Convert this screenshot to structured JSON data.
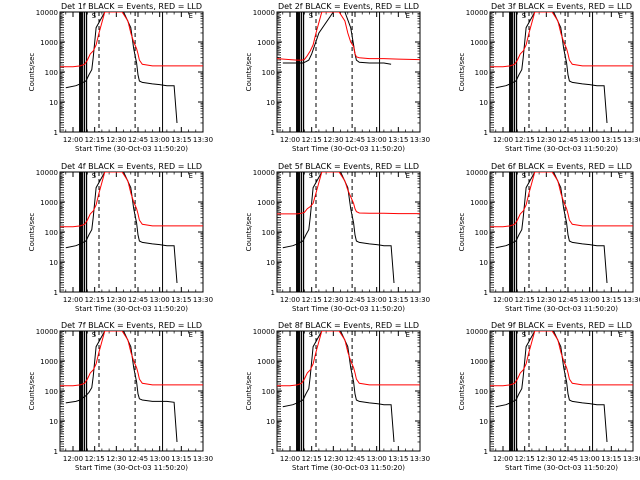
{
  "common": {
    "ylabel": "Counts/sec",
    "xlabel": "Start Time (30-Oct-03 11:50:20)",
    "xticks": [
      "12:00",
      "12:15",
      "12:30",
      "12:45",
      "13:00",
      "13:15",
      "13:30"
    ],
    "yticks": [
      "1",
      "10",
      "100",
      "1000",
      "10000"
    ],
    "ylim": [
      1,
      10000
    ],
    "xlim_minutes_after_12_00": [
      -9,
      90
    ],
    "yscale": "log",
    "colors": {
      "events": "#000000",
      "lld": "#ff0000"
    },
    "marker": "S",
    "end_marker": "E"
  },
  "chart_data": [
    {
      "type": "line",
      "title": "Det 1f BLACK = Events, RED = LLD",
      "series": [
        {
          "name": "Events",
          "color": "#000000",
          "x": [
            -5,
            2,
            5,
            7,
            9,
            11,
            13,
            14,
            16,
            22,
            28,
            35,
            40,
            42,
            44,
            45,
            46,
            48,
            55,
            60,
            65,
            70,
            72
          ],
          "y": [
            30,
            35,
            40,
            45,
            50,
            80,
            120,
            300,
            3000,
            10000,
            10000,
            10000,
            3000,
            600,
            200,
            80,
            50,
            45,
            40,
            38,
            35,
            35,
            2
          ]
        },
        {
          "name": "LLD",
          "color": "#ff0000",
          "x": [
            -9,
            0,
            5,
            8,
            10,
            12,
            14,
            16,
            18,
            22,
            28,
            34,
            38,
            40,
            42,
            44,
            45,
            46,
            48,
            55,
            65,
            75,
            90
          ],
          "y": [
            150,
            150,
            160,
            180,
            250,
            400,
            500,
            800,
            2000,
            10000,
            10000,
            10000,
            5000,
            2000,
            1000,
            600,
            400,
            250,
            180,
            160,
            160,
            160,
            160
          ]
        }
      ]
    },
    {
      "type": "line",
      "title": "Det 2f BLACK = Events, RED = LLD",
      "series": [
        {
          "name": "Events",
          "color": "#000000",
          "x": [
            -5,
            2,
            5,
            7,
            9,
            11,
            13,
            15,
            20,
            30,
            38,
            42,
            44,
            45,
            46,
            48,
            55,
            65,
            70
          ],
          "y": [
            200,
            200,
            200,
            200,
            200,
            220,
            250,
            400,
            2000,
            10000,
            10000,
            3000,
            800,
            400,
            250,
            210,
            200,
            200,
            180
          ]
        },
        {
          "name": "LLD",
          "color": "#ff0000",
          "x": [
            -9,
            0,
            5,
            8,
            10,
            12,
            14,
            16,
            18,
            22,
            28,
            34,
            38,
            40,
            42,
            44,
            45,
            46,
            48,
            55,
            65,
            75,
            90
          ],
          "y": [
            280,
            260,
            250,
            250,
            260,
            350,
            500,
            800,
            2000,
            10000,
            10000,
            10000,
            5000,
            2000,
            1000,
            700,
            400,
            320,
            300,
            280,
            280,
            270,
            260
          ]
        }
      ]
    },
    {
      "type": "line",
      "title": "Det 3f BLACK = Events, RED = LLD",
      "series": [
        {
          "name": "Events",
          "color": "#000000",
          "x": [
            -5,
            2,
            5,
            7,
            9,
            11,
            13,
            14,
            16,
            22,
            28,
            35,
            40,
            42,
            44,
            45,
            46,
            48,
            55,
            60,
            65,
            70,
            72
          ],
          "y": [
            30,
            35,
            40,
            45,
            50,
            80,
            120,
            300,
            3000,
            10000,
            10000,
            10000,
            3000,
            600,
            200,
            80,
            50,
            45,
            40,
            38,
            35,
            35,
            2
          ]
        },
        {
          "name": "LLD",
          "color": "#ff0000",
          "x": [
            -9,
            0,
            5,
            8,
            10,
            12,
            14,
            16,
            18,
            22,
            28,
            34,
            38,
            40,
            42,
            44,
            45,
            46,
            48,
            55,
            65,
            75,
            90
          ],
          "y": [
            150,
            150,
            160,
            180,
            250,
            400,
            500,
            800,
            2000,
            10000,
            10000,
            10000,
            5000,
            2000,
            1000,
            600,
            400,
            250,
            180,
            160,
            160,
            160,
            160
          ]
        }
      ]
    },
    {
      "type": "line",
      "title": "Det 4f BLACK = Events, RED = LLD",
      "series": [
        {
          "name": "Events",
          "color": "#000000",
          "x": [
            -5,
            2,
            5,
            7,
            9,
            11,
            13,
            14,
            16,
            22,
            28,
            35,
            40,
            42,
            44,
            45,
            46,
            48,
            55,
            60,
            65,
            70,
            72
          ],
          "y": [
            30,
            35,
            40,
            45,
            50,
            80,
            120,
            300,
            3000,
            10000,
            10000,
            10000,
            3000,
            600,
            200,
            80,
            50,
            45,
            40,
            38,
            35,
            35,
            2
          ]
        },
        {
          "name": "LLD",
          "color": "#ff0000",
          "x": [
            -9,
            0,
            5,
            8,
            10,
            12,
            14,
            16,
            18,
            22,
            28,
            34,
            38,
            40,
            42,
            44,
            45,
            46,
            48,
            55,
            65,
            75,
            90
          ],
          "y": [
            150,
            150,
            160,
            180,
            250,
            400,
            500,
            800,
            2000,
            10000,
            10000,
            10000,
            5000,
            2000,
            1000,
            600,
            400,
            250,
            180,
            160,
            160,
            160,
            160
          ]
        }
      ]
    },
    {
      "type": "line",
      "title": "Det 5f BLACK = Events, RED = LLD",
      "series": [
        {
          "name": "Events",
          "color": "#000000",
          "x": [
            -5,
            2,
            5,
            7,
            9,
            11,
            13,
            14,
            16,
            22,
            28,
            35,
            40,
            42,
            44,
            45,
            46,
            48,
            55,
            60,
            65,
            70,
            72
          ],
          "y": [
            30,
            35,
            40,
            45,
            50,
            80,
            120,
            300,
            3000,
            10000,
            10000,
            10000,
            3000,
            600,
            200,
            80,
            50,
            45,
            40,
            38,
            35,
            35,
            2
          ]
        },
        {
          "name": "LLD",
          "color": "#ff0000",
          "x": [
            -9,
            0,
            5,
            8,
            10,
            12,
            14,
            16,
            18,
            22,
            28,
            34,
            38,
            40,
            42,
            44,
            45,
            46,
            48,
            55,
            65,
            75,
            90
          ],
          "y": [
            400,
            400,
            400,
            420,
            450,
            600,
            700,
            900,
            2000,
            10000,
            10000,
            10000,
            5000,
            2500,
            1500,
            900,
            600,
            480,
            430,
            420,
            420,
            410,
            410
          ]
        }
      ]
    },
    {
      "type": "line",
      "title": "Det 6f BLACK = Events, RED = LLD",
      "series": [
        {
          "name": "Events",
          "color": "#000000",
          "x": [
            -5,
            2,
            5,
            7,
            9,
            11,
            13,
            14,
            16,
            22,
            28,
            35,
            40,
            42,
            44,
            45,
            46,
            48,
            55,
            60,
            65,
            70,
            72
          ],
          "y": [
            30,
            35,
            40,
            45,
            50,
            80,
            120,
            300,
            3000,
            10000,
            10000,
            10000,
            3000,
            600,
            200,
            80,
            50,
            45,
            40,
            38,
            35,
            35,
            2
          ]
        },
        {
          "name": "LLD",
          "color": "#ff0000",
          "x": [
            -9,
            0,
            5,
            8,
            10,
            12,
            14,
            16,
            18,
            22,
            28,
            34,
            38,
            40,
            42,
            44,
            45,
            46,
            48,
            55,
            65,
            75,
            90
          ],
          "y": [
            150,
            150,
            160,
            180,
            250,
            400,
            500,
            800,
            2000,
            10000,
            10000,
            10000,
            5000,
            2000,
            1000,
            600,
            400,
            250,
            180,
            160,
            160,
            160,
            160
          ]
        }
      ]
    },
    {
      "type": "line",
      "title": "Det 7f BLACK = Events, RED = LLD",
      "series": [
        {
          "name": "Events",
          "color": "#000000",
          "x": [
            -5,
            2,
            5,
            7,
            9,
            11,
            13,
            14,
            16,
            22,
            28,
            35,
            40,
            42,
            44,
            45,
            46,
            48,
            55,
            60,
            65,
            70,
            72
          ],
          "y": [
            40,
            45,
            50,
            60,
            70,
            90,
            130,
            300,
            3000,
            10000,
            10000,
            10000,
            3000,
            600,
            200,
            80,
            55,
            50,
            45,
            45,
            45,
            42,
            2
          ]
        },
        {
          "name": "LLD",
          "color": "#ff0000",
          "x": [
            -9,
            0,
            5,
            8,
            10,
            12,
            14,
            16,
            18,
            22,
            28,
            34,
            38,
            40,
            42,
            44,
            45,
            46,
            48,
            55,
            65,
            75,
            90
          ],
          "y": [
            150,
            150,
            160,
            180,
            250,
            400,
            500,
            800,
            2000,
            10000,
            10000,
            10000,
            5000,
            2000,
            1000,
            600,
            400,
            250,
            180,
            160,
            160,
            160,
            160
          ]
        }
      ]
    },
    {
      "type": "line",
      "title": "Det 8f BLACK = Events, RED = LLD",
      "series": [
        {
          "name": "Events",
          "color": "#000000",
          "x": [
            -5,
            2,
            5,
            7,
            9,
            11,
            13,
            14,
            16,
            22,
            28,
            35,
            40,
            42,
            44,
            45,
            46,
            48,
            55,
            60,
            65,
            70,
            72
          ],
          "y": [
            30,
            35,
            40,
            45,
            50,
            80,
            120,
            300,
            3000,
            10000,
            10000,
            10000,
            3000,
            600,
            200,
            80,
            50,
            45,
            40,
            38,
            35,
            35,
            2
          ]
        },
        {
          "name": "LLD",
          "color": "#ff0000",
          "x": [
            -9,
            0,
            5,
            8,
            10,
            12,
            14,
            16,
            18,
            22,
            28,
            34,
            38,
            40,
            42,
            44,
            45,
            46,
            48,
            55,
            65,
            75,
            90
          ],
          "y": [
            150,
            150,
            160,
            180,
            250,
            400,
            500,
            800,
            2000,
            10000,
            10000,
            10000,
            5000,
            2000,
            1000,
            600,
            400,
            250,
            180,
            160,
            160,
            160,
            160
          ]
        }
      ]
    },
    {
      "type": "line",
      "title": "Det 9f BLACK = Events, RED = LLD",
      "series": [
        {
          "name": "Events",
          "color": "#000000",
          "x": [
            -5,
            2,
            5,
            7,
            9,
            11,
            13,
            14,
            16,
            22,
            28,
            35,
            40,
            42,
            44,
            45,
            46,
            48,
            55,
            60,
            65,
            70,
            72
          ],
          "y": [
            30,
            35,
            40,
            45,
            50,
            80,
            120,
            300,
            3000,
            10000,
            10000,
            10000,
            3000,
            600,
            200,
            80,
            50,
            45,
            40,
            38,
            35,
            35,
            2
          ]
        },
        {
          "name": "LLD",
          "color": "#ff0000",
          "x": [
            -9,
            0,
            5,
            8,
            10,
            12,
            14,
            16,
            18,
            22,
            28,
            34,
            38,
            40,
            42,
            44,
            45,
            46,
            48,
            55,
            65,
            75,
            90
          ],
          "y": [
            150,
            150,
            160,
            180,
            250,
            400,
            500,
            800,
            2000,
            10000,
            10000,
            10000,
            5000,
            2000,
            1000,
            600,
            400,
            250,
            180,
            160,
            160,
            160,
            160
          ]
        }
      ]
    }
  ]
}
